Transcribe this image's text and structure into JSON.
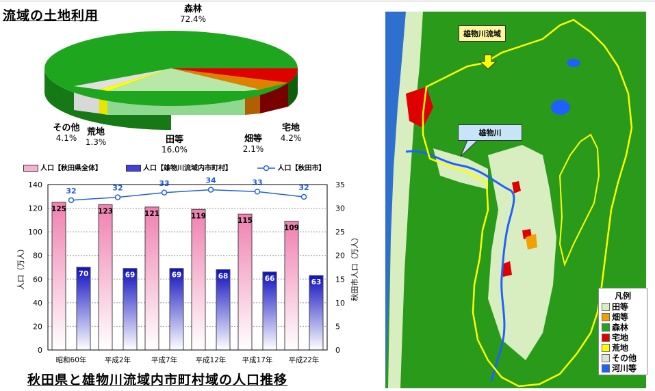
{
  "land_use": {
    "title": "流域の土地利用",
    "slices": [
      {
        "label": "森林",
        "pct": "72.4%",
        "value": 72.4,
        "color": "#1fa61f"
      },
      {
        "label": "宅地",
        "pct": "4.2%",
        "value": 4.2,
        "color": "#e00000"
      },
      {
        "label": "畑等",
        "pct": "2.1%",
        "value": 2.1,
        "color": "#e08000"
      },
      {
        "label": "田等",
        "pct": "16.0%",
        "value": 16.0,
        "color": "#b8e8a8"
      },
      {
        "label": "荒地",
        "pct": "1.3%",
        "value": 1.3,
        "color": "#ffff00"
      },
      {
        "label": "その他",
        "pct": "4.1%",
        "value": 4.1,
        "color": "#e0e0e0"
      }
    ]
  },
  "chart_data": {
    "type": "bar",
    "title": "秋田県と雄物川流域内市町村域の人口推移",
    "categories": [
      "昭和60年",
      "平成2年",
      "平成7年",
      "平成12年",
      "平成17年",
      "平成22年"
    ],
    "series": [
      {
        "name": "人口【秋田県全体】",
        "type": "bar",
        "axis": "left",
        "values": [
          125,
          123,
          121,
          119,
          115,
          109
        ],
        "color": "#f080b0"
      },
      {
        "name": "人口【雄物川流域内市町村】",
        "type": "bar",
        "axis": "left",
        "values": [
          70,
          69,
          69,
          68,
          66,
          63
        ],
        "color": "#2020d0"
      },
      {
        "name": "人口【秋田市】",
        "type": "line",
        "axis": "right",
        "values": [
          32,
          32,
          33,
          34,
          33,
          32
        ],
        "plot_values": [
          31.7,
          32.3,
          33.3,
          33.9,
          33.5,
          32.4
        ],
        "color": "#2060e0"
      }
    ],
    "ylabel": "人口（万人）",
    "y2label": "秋田市人口（万人）",
    "ylim": [
      0,
      140
    ],
    "y2lim": [
      0,
      35
    ],
    "yticks": [
      "0",
      "20",
      "40",
      "60",
      "80",
      "100",
      "120",
      "140"
    ],
    "y2ticks": [
      "0",
      "5",
      "10",
      "15",
      "20",
      "25",
      "30",
      "35"
    ],
    "grid": true,
    "legend": "top"
  },
  "map": {
    "callout_basin": "雄物川流域",
    "callout_river": "雄物川",
    "legend_title": "凡例",
    "legend_items": [
      {
        "label": "田等",
        "color": "#d8eec0"
      },
      {
        "label": "畑等",
        "color": "#f0a000"
      },
      {
        "label": "森林",
        "color": "#1fa61f"
      },
      {
        "label": "宅地",
        "color": "#e00000"
      },
      {
        "label": "荒地",
        "color": "#ffff00"
      },
      {
        "label": "その他",
        "color": "#e0e0e0"
      },
      {
        "label": "河川等",
        "color": "#2060ff"
      }
    ]
  }
}
